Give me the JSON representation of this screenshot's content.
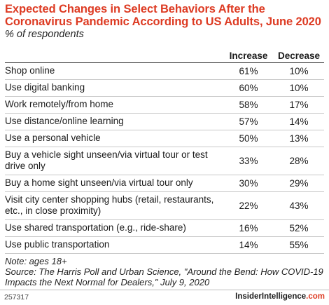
{
  "chart_data": {
    "type": "table",
    "title": "Expected Changes in Select Behaviors After the Coronavirus Pandemic According to US Adults, June 2020",
    "subtitle": "% of respondents",
    "columns": [
      "Increase",
      "Decrease"
    ],
    "rows": [
      {
        "label": "Shop online",
        "increase": "61%",
        "decrease": "10%"
      },
      {
        "label": "Use digital banking",
        "increase": "60%",
        "decrease": "10%"
      },
      {
        "label": "Work remotely/from home",
        "increase": "58%",
        "decrease": "17%"
      },
      {
        "label": "Use distance/online learning",
        "increase": "57%",
        "decrease": "14%"
      },
      {
        "label": "Use a personal vehicle",
        "increase": "50%",
        "decrease": "13%"
      },
      {
        "label": "Buy a vehicle sight unseen/via virtual tour or test drive only",
        "increase": "33%",
        "decrease": "28%"
      },
      {
        "label": "Buy a home sight unseen/via virtual tour only",
        "increase": "30%",
        "decrease": "29%"
      },
      {
        "label": "Visit city center shopping hubs (retail, restaurants, etc., in close proximity)",
        "increase": "22%",
        "decrease": "43%"
      },
      {
        "label": "Use shared transportation (e.g., ride-share)",
        "increase": "16%",
        "decrease": "52%"
      },
      {
        "label": "Use public transportation",
        "increase": "14%",
        "decrease": "55%"
      }
    ]
  },
  "notes": {
    "note": "Note: ages 18+",
    "source": "Source: The Harris Poll and Urban Science, \"Around the Bend: How COVID-19 Impacts the Next Normal for Dealers,\" July 9, 2020"
  },
  "footer": {
    "chart_id": "257317",
    "brand_main": "InsiderIntelligence",
    "brand_suffix": ".com"
  },
  "colors": {
    "title": "#dd3b23",
    "text": "#1a1a1a",
    "rule": "#c8c8c8"
  }
}
